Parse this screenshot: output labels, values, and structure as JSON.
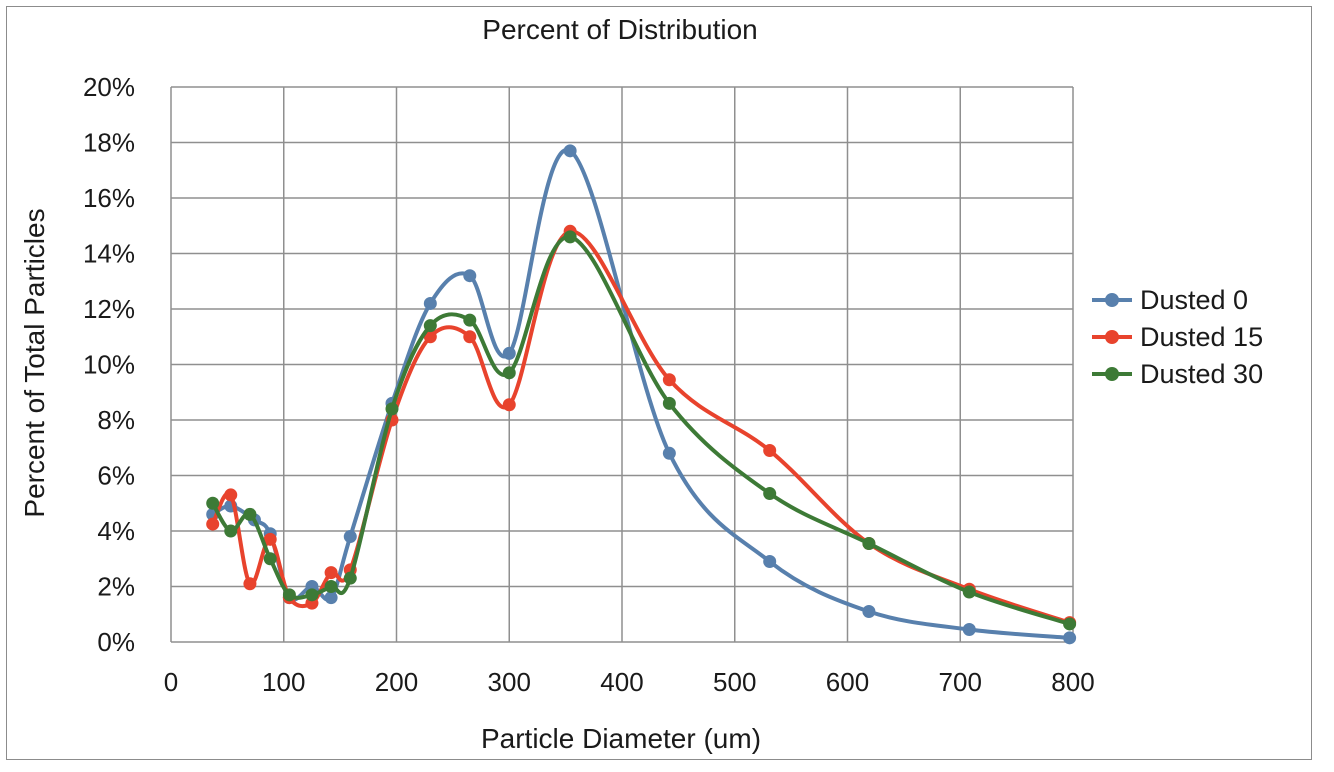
{
  "chart_data": {
    "type": "line",
    "smooth": true,
    "title": "Percent of Distribution",
    "xlabel": "Particle Diameter (um)",
    "ylabel": "Percent of Total Particles",
    "xlim": [
      0,
      800
    ],
    "ylim": [
      0,
      20
    ],
    "x_ticks": [
      "0",
      "100",
      "200",
      "300",
      "400",
      "500",
      "600",
      "700",
      "800"
    ],
    "y_ticks": [
      "0%",
      "2%",
      "4%",
      "6%",
      "8%",
      "10%",
      "12%",
      "14%",
      "16%",
      "18%",
      "20%"
    ],
    "grid": true,
    "legend_position": "right",
    "series": [
      {
        "name": "Dusted 0",
        "color": "#5880ad",
        "x": [
          37,
          53,
          74,
          88,
          105,
          125,
          142,
          159,
          196,
          230,
          265,
          300,
          354,
          442,
          531,
          619,
          708,
          797
        ],
        "y": [
          4.6,
          4.9,
          4.4,
          3.9,
          1.6,
          2.0,
          1.6,
          3.8,
          8.6,
          12.2,
          13.2,
          10.4,
          17.7,
          6.8,
          2.9,
          1.1,
          0.45,
          0.15
        ]
      },
      {
        "name": "Dusted 15",
        "color": "#e8432d",
        "x": [
          37,
          53,
          70,
          88,
          105,
          125,
          142,
          159,
          196,
          230,
          265,
          300,
          354,
          442,
          531,
          619,
          708,
          797
        ],
        "y": [
          4.25,
          5.3,
          2.1,
          3.7,
          1.6,
          1.4,
          2.5,
          2.6,
          8.0,
          11.0,
          11.0,
          8.55,
          14.8,
          9.45,
          6.9,
          3.55,
          1.9,
          0.7
        ]
      },
      {
        "name": "Dusted 30",
        "color": "#3d7a36",
        "x": [
          37,
          53,
          70,
          88,
          105,
          125,
          142,
          159,
          196,
          230,
          265,
          300,
          354,
          442,
          531,
          619,
          708,
          797
        ],
        "y": [
          5.0,
          4.0,
          4.6,
          3.0,
          1.7,
          1.7,
          2.0,
          2.3,
          8.4,
          11.4,
          11.6,
          9.7,
          14.6,
          8.6,
          5.35,
          3.55,
          1.8,
          0.65
        ]
      }
    ]
  }
}
